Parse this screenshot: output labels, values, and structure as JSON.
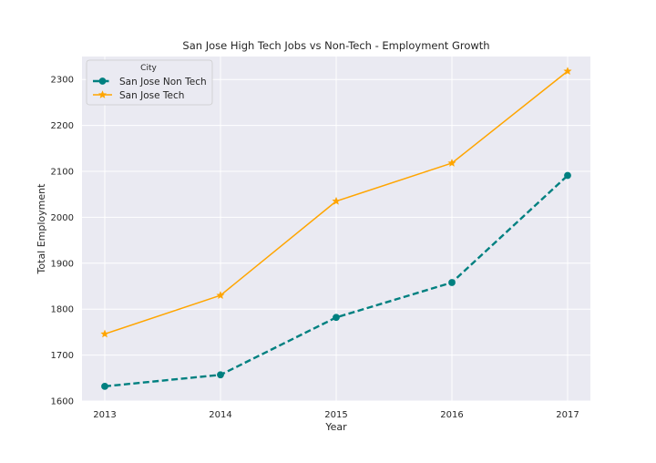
{
  "chart_data": {
    "type": "line",
    "title": "San Jose High Tech Jobs vs Non-Tech - Employment Growth",
    "xlabel": "Year",
    "ylabel": "Total Employment",
    "x": [
      "2013",
      "2014",
      "2015",
      "2016",
      "2017"
    ],
    "ylim": [
      1600,
      2350
    ],
    "yticks": [
      1600,
      1700,
      1800,
      1900,
      2000,
      2100,
      2200,
      2300
    ],
    "grid": true,
    "background": "#eaeaf2",
    "legend": {
      "title": "City",
      "placement": "top-left"
    },
    "series": [
      {
        "name": "San Jose Non Tech",
        "values": [
          1632,
          1657,
          1782,
          1858,
          2091
        ],
        "color": "#008080",
        "line_style": "dashed",
        "marker": "circle"
      },
      {
        "name": "San Jose Tech",
        "values": [
          1746,
          1830,
          2035,
          2118,
          2318
        ],
        "color": "#ffa500",
        "line_style": "solid",
        "marker": "star"
      }
    ]
  }
}
